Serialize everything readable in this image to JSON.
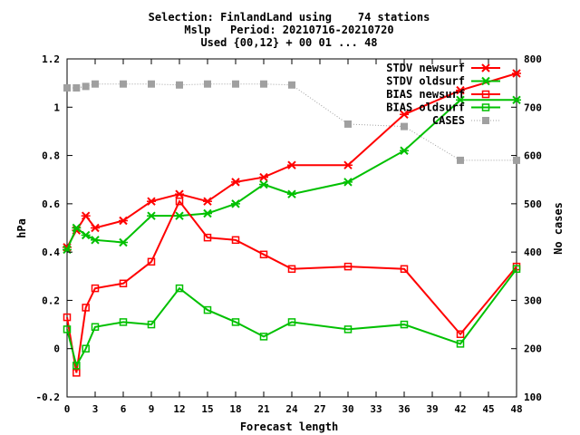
{
  "title_lines": [
    "Selection: FinlandLand using    74 stations",
    "Mslp   Period: 20210716-20210720",
    "Used {00,12} + 00 01 ... 48"
  ],
  "chart_data": {
    "type": "line",
    "xlabel": "Forecast length",
    "ylabel": "hPa",
    "y2label": "No cases",
    "xlim": [
      0,
      48
    ],
    "ylim": [
      -0.2,
      1.2
    ],
    "y2lim": [
      100,
      800
    ],
    "x_ticks": [
      0,
      3,
      6,
      9,
      12,
      15,
      18,
      21,
      24,
      27,
      30,
      33,
      36,
      39,
      42,
      45,
      48
    ],
    "y_ticks": [
      -0.2,
      0,
      0.2,
      0.4,
      0.6,
      0.8,
      1,
      1.2
    ],
    "y_tick_labels": [
      "-0.2",
      "0",
      "0.2",
      "0.4",
      "0.6",
      "0.8",
      "1",
      "1.2"
    ],
    "y2_ticks": [
      100,
      200,
      300,
      400,
      500,
      600,
      700,
      800
    ],
    "grid": false,
    "legend_position": "top-right",
    "series": [
      {
        "name": "STDV newsurf",
        "axis": "left",
        "color": "#ff0000",
        "marker": "x",
        "line": "solid",
        "x": [
          0,
          1,
          2,
          3,
          6,
          9,
          12,
          15,
          18,
          21,
          24,
          30,
          36,
          42,
          48
        ],
        "y": [
          0.42,
          0.49,
          0.55,
          0.5,
          0.53,
          0.61,
          0.64,
          0.61,
          0.69,
          0.71,
          0.76,
          0.76,
          0.97,
          1.07,
          1.14
        ]
      },
      {
        "name": "STDV oldsurf",
        "axis": "left",
        "color": "#00c000",
        "marker": "x",
        "line": "solid",
        "x": [
          0,
          1,
          2,
          3,
          6,
          9,
          12,
          15,
          18,
          21,
          24,
          30,
          36,
          42,
          48
        ],
        "y": [
          0.41,
          0.5,
          0.47,
          0.45,
          0.44,
          0.55,
          0.55,
          0.56,
          0.6,
          0.68,
          0.64,
          0.69,
          0.82,
          1.03,
          1.03
        ]
      },
      {
        "name": "BIAS newsurf",
        "axis": "left",
        "color": "#ff0000",
        "marker": "square",
        "line": "solid",
        "x": [
          0,
          1,
          2,
          3,
          6,
          9,
          12,
          15,
          18,
          21,
          24,
          30,
          36,
          42,
          48
        ],
        "y": [
          0.13,
          -0.1,
          0.17,
          0.25,
          0.27,
          0.36,
          0.61,
          0.46,
          0.45,
          0.39,
          0.33,
          0.34,
          0.33,
          0.06,
          0.34
        ]
      },
      {
        "name": "BIAS oldsurf",
        "axis": "left",
        "color": "#00c000",
        "marker": "square",
        "line": "solid",
        "x": [
          0,
          1,
          2,
          3,
          6,
          9,
          12,
          15,
          18,
          21,
          24,
          30,
          36,
          42,
          48
        ],
        "y": [
          0.08,
          -0.07,
          0.0,
          0.09,
          0.11,
          0.1,
          0.25,
          0.16,
          0.11,
          0.05,
          0.11,
          0.08,
          0.1,
          0.02,
          0.33
        ]
      },
      {
        "name": "CASES",
        "axis": "right",
        "color": "#a0a0a0",
        "marker": "filled-square",
        "line": "dotted",
        "x": [
          0,
          1,
          2,
          3,
          6,
          9,
          12,
          15,
          18,
          21,
          24,
          30,
          36,
          42,
          48
        ],
        "y": [
          740,
          740,
          743,
          748,
          748,
          748,
          746,
          748,
          748,
          748,
          746,
          665,
          660,
          590,
          590
        ]
      }
    ]
  }
}
